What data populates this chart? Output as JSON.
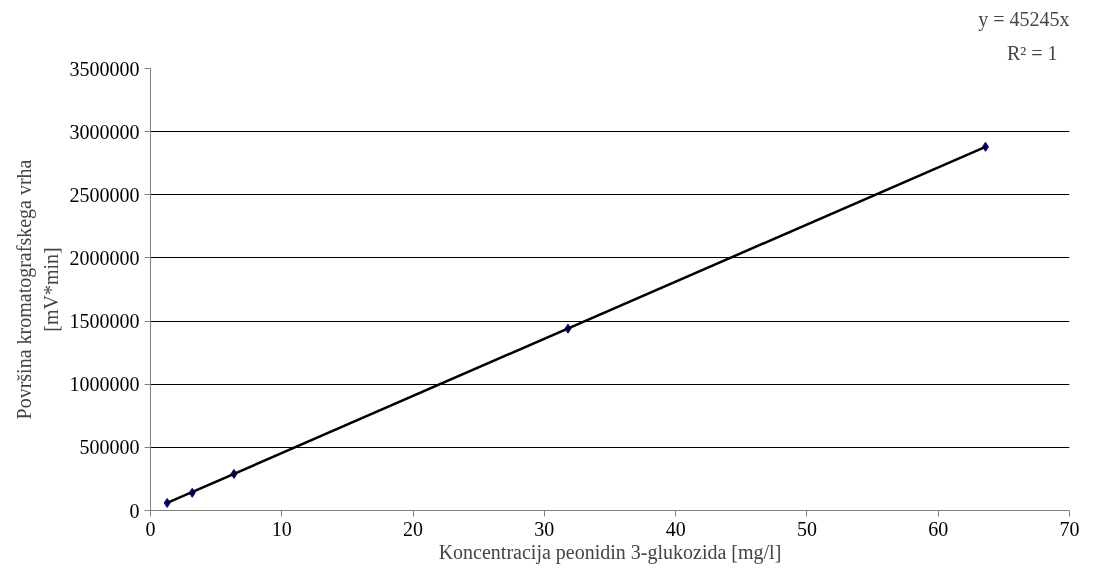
{
  "chart_data": {
    "type": "scatter",
    "xlabel": "Koncentracija peonidin 3-glukozida [mg/l]",
    "ylabel": "Površina kromatografskega vrha\n[mV*min]",
    "series": [
      {
        "color": "#000080",
        "marker": "diamond",
        "x": [
          1.27,
          3.18,
          6.36,
          31.8,
          63.6
        ],
        "values": [
          60000,
          140000,
          290000,
          1440000,
          2880000
        ]
      },
      {
        "type": "line",
        "color": "#000000",
        "x": [
          1.27,
          63.6
        ],
        "values": [
          60000,
          2880000
        ]
      }
    ],
    "xlim": [
      0,
      70
    ],
    "xticks": [
      0,
      10,
      20,
      30,
      40,
      50,
      60,
      70
    ],
    "ylim": [
      0,
      3500000
    ],
    "yticks": [
      0,
      500000,
      1000000,
      1500000,
      2000000,
      2500000,
      3000000,
      3500000
    ],
    "grid": "y",
    "annotations": [
      "y = 45245x",
      "R² = 1"
    ]
  }
}
